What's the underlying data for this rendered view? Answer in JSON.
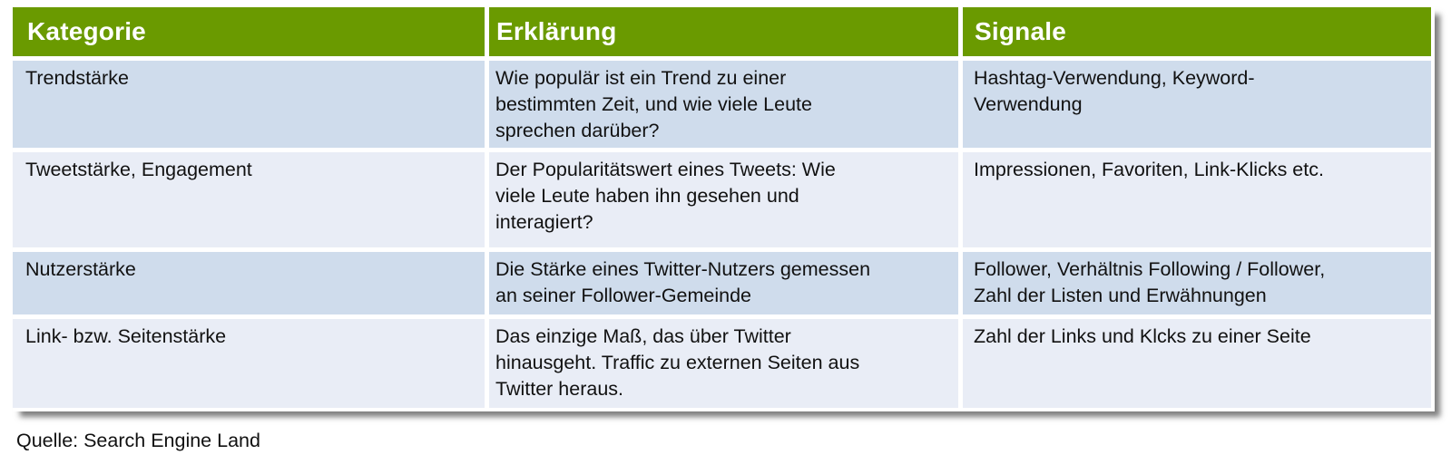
{
  "table": {
    "headers": [
      {
        "label": "Kategorie"
      },
      {
        "label": "Erklärung"
      },
      {
        "label": "Signale"
      }
    ],
    "rows": [
      {
        "kategorie": "Trendstärke",
        "erklaerung": "Wie populär ist ein Trend zu einer\nbestimmten Zeit, und wie viele Leute\nsprechen darüber?",
        "signale": "Hashtag-Verwendung, Keyword-\nVerwendung"
      },
      {
        "kategorie": "Tweetstärke, Engagement",
        "erklaerung": "Der Popularitätswert eines Tweets: Wie\nviele Leute haben ihn gesehen und\ninteragiert?",
        "signale": "Impressionen, Favoriten, Link-Klicks etc."
      },
      {
        "kategorie": "Nutzerstärke",
        "erklaerung": "Die Stärke eines Twitter-Nutzers gemessen\nan seiner Follower-Gemeinde",
        "signale": "Follower, Verhältnis Following / Follower,\nZahl der Listen und Erwähnungen"
      },
      {
        "kategorie": "Link- bzw. Seitenstärke",
        "erklaerung": "Das einzige Maß, das über Twitter\nhinausgeht. Traffic zu externen Seiten aus\nTwitter heraus.",
        "signale": "Zahl der Links und Klcks zu einer Seite"
      }
    ]
  },
  "footer": {
    "source_label": "Quelle: Search Engine Land"
  },
  "colors": {
    "header_green": "#6A9A00",
    "row_dark_blue": "#CFDCEC",
    "row_light_blue": "#E9EDF6",
    "header_text": "#FFFFFF",
    "body_text": "#111111",
    "page_background": "#FFFFFF"
  }
}
